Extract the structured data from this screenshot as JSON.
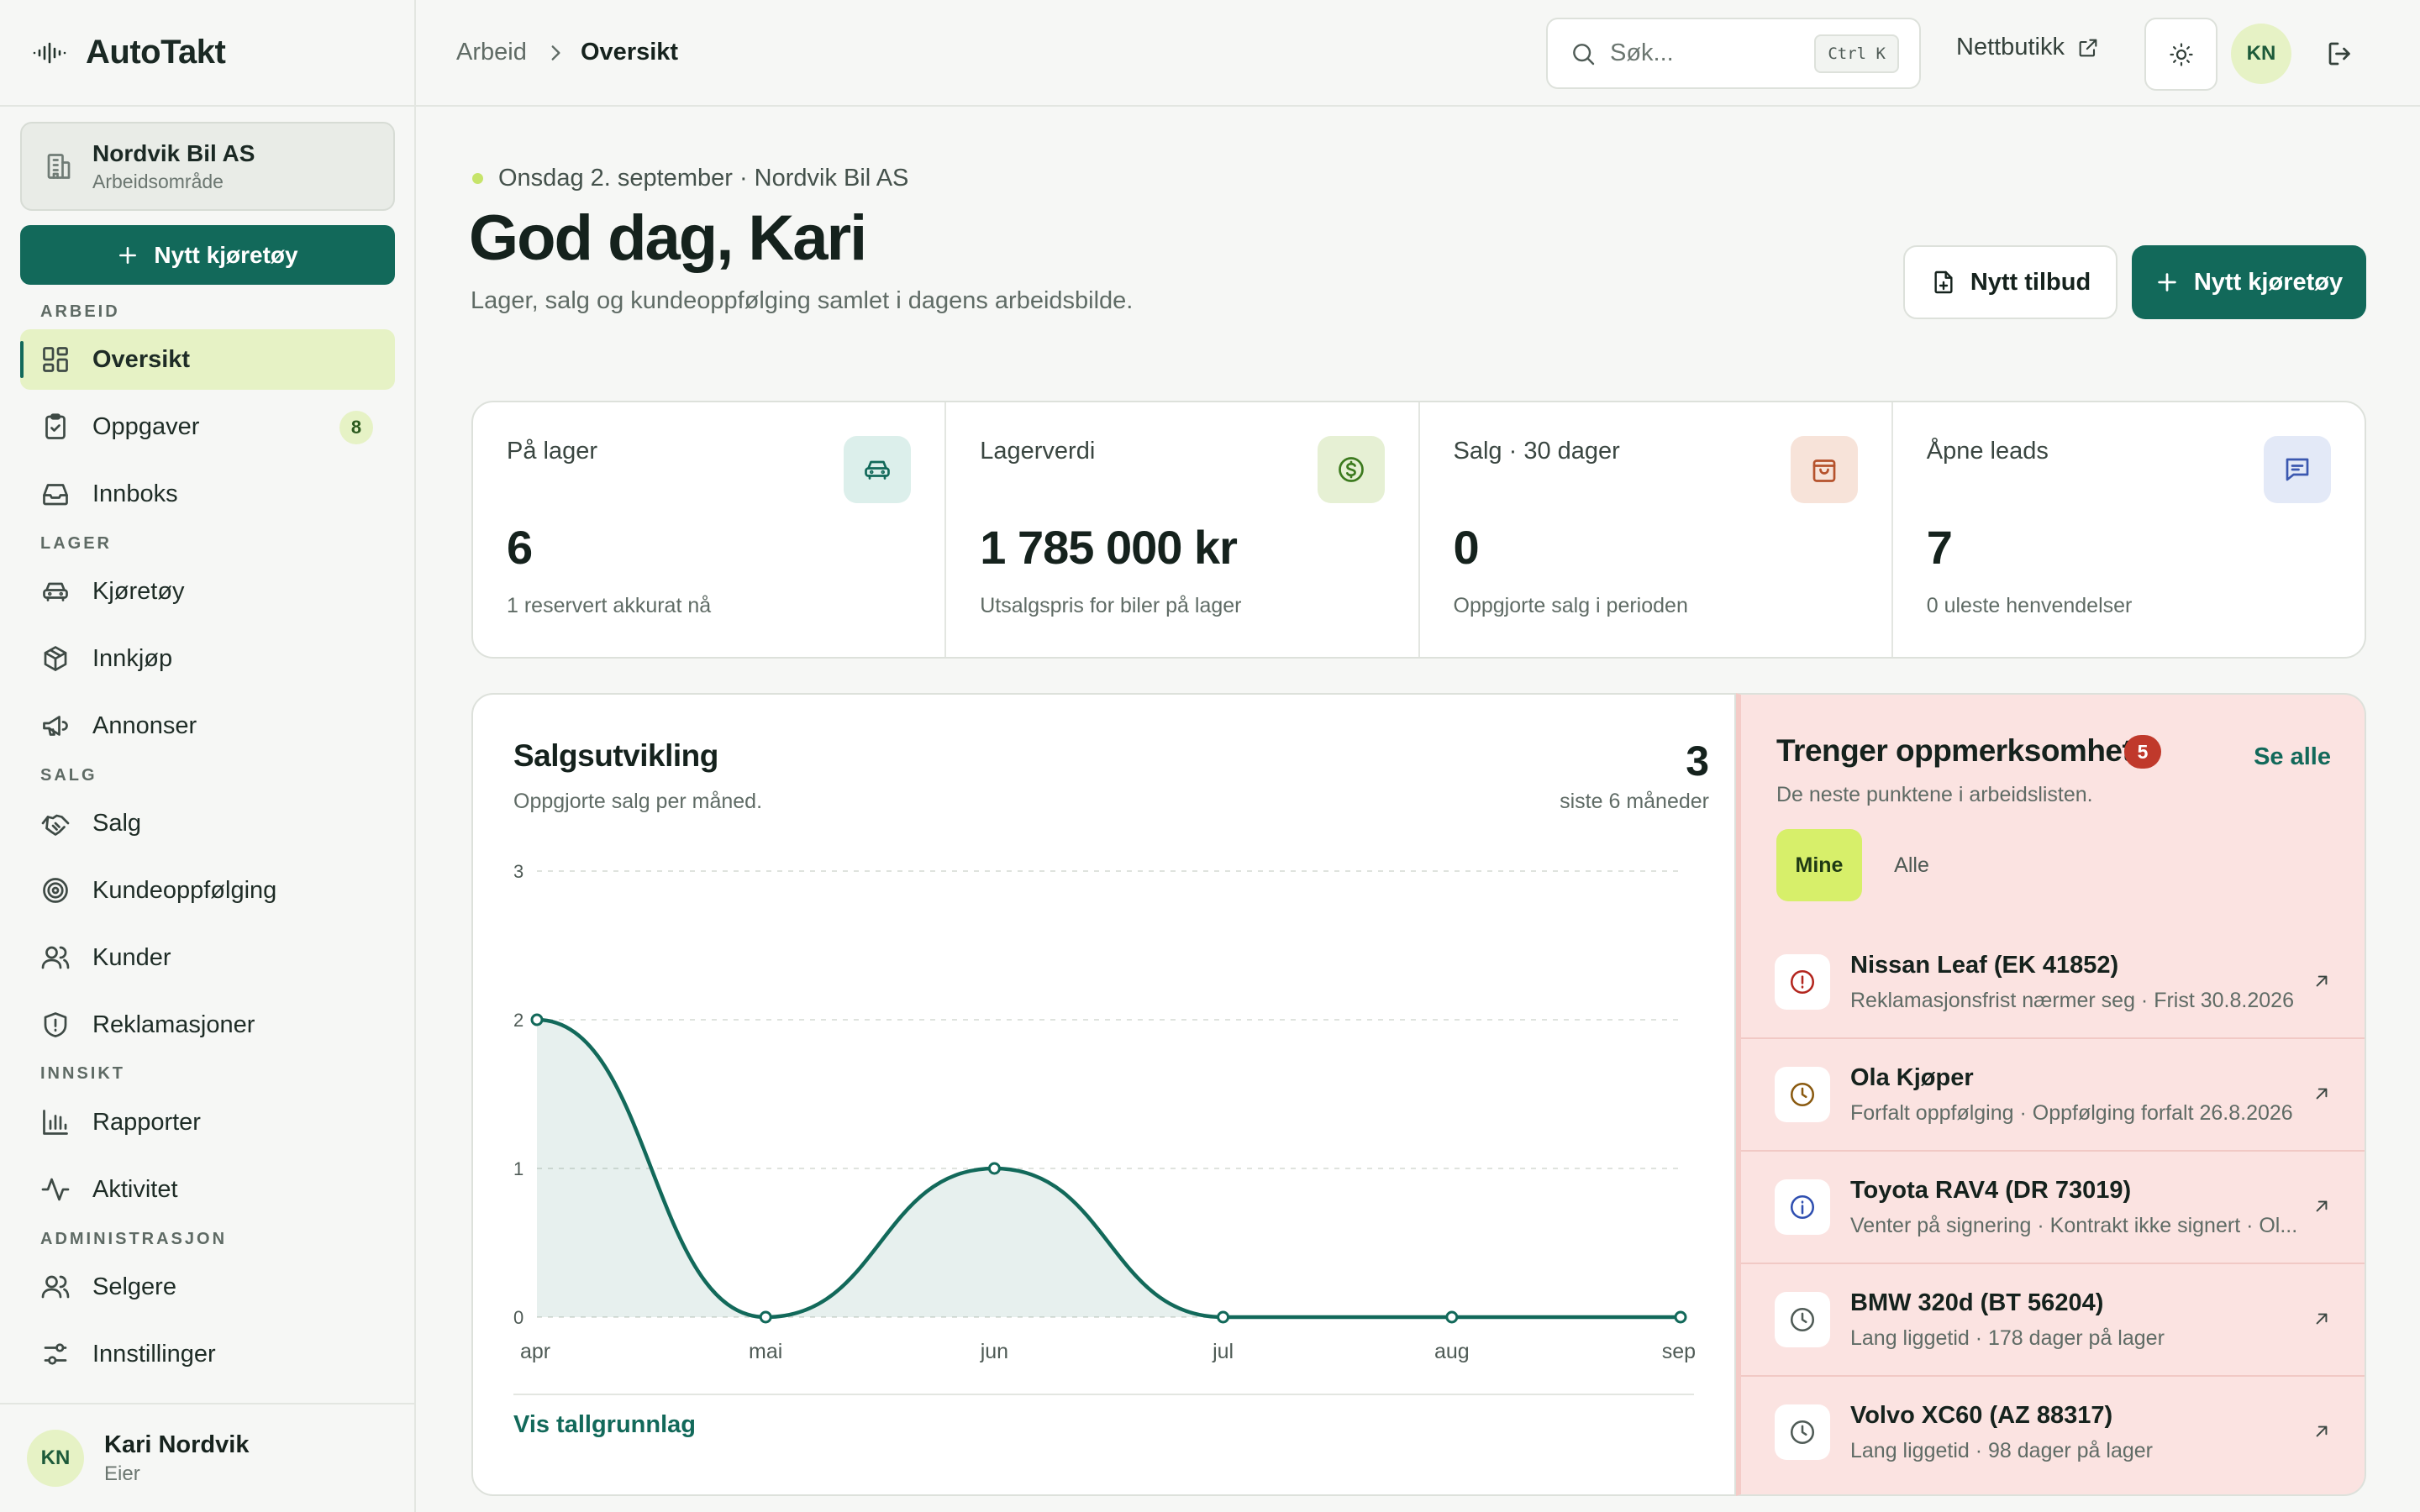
{
  "brand": {
    "name": "AutoTakt"
  },
  "workspace": {
    "name": "Nordvik Bil AS",
    "sub": "Arbeidsområde"
  },
  "sidebar": {
    "cta_label": "Nytt kjøretøy",
    "sections": {
      "arbeid": "ARBEID",
      "lager": "LAGER",
      "salg": "SALG",
      "innsikt": "INNSIKT",
      "admin": "ADMINISTRASJON"
    },
    "items": {
      "oversikt": "Oversikt",
      "oppgaver": "Oppgaver",
      "oppgaver_badge": "8",
      "innboks": "Innboks",
      "kjoretoy": "Kjøretøy",
      "innkjop": "Innkjøp",
      "annonser": "Annonser",
      "salg": "Salg",
      "kundeoppfolging": "Kundeoppfølging",
      "kunder": "Kunder",
      "reklamasjoner": "Reklamasjoner",
      "rapporter": "Rapporter",
      "aktivitet": "Aktivitet",
      "selgere": "Selgere",
      "innstillinger": "Innstillinger"
    },
    "user": {
      "initials": "KN",
      "name": "Kari Nordvik",
      "role": "Eier"
    }
  },
  "topbar": {
    "breadcrumb": [
      "Arbeid",
      "Oversikt"
    ],
    "search_placeholder": "Søk...",
    "search_value": "",
    "shortcut": "Ctrl K",
    "shop_link": "Nettbutikk",
    "avatar_initials": "KN"
  },
  "header": {
    "date_line": "Onsdag 2. september · Nordvik Bil AS",
    "greeting": "God dag, Kari",
    "subtitle": "Lager, salg og kundeoppfølging samlet i dagens arbeidsbilde.",
    "btn_offer": "Nytt tilbud",
    "btn_vehicle": "Nytt kjøretøy"
  },
  "stats": [
    {
      "label": "På lager",
      "value": "6",
      "note": "1 reservert akkurat nå",
      "icon": "car-icon",
      "icon_bg": "#dcefeb",
      "icon_color": "#12695a"
    },
    {
      "label": "Lagerverdi",
      "value": "1 785 000 kr",
      "note": "Utsalgspris for biler på lager",
      "icon": "dollar-icon",
      "icon_bg": "#e6f0d4",
      "icon_color": "#3c7a1e"
    },
    {
      "label": "Salg · 30 dager",
      "value": "0",
      "note": "Oppgjorte salg i perioden",
      "icon": "bag-icon",
      "icon_bg": "#f7e3d9",
      "icon_color": "#b5522c"
    },
    {
      "label": "Åpne leads",
      "value": "7",
      "note": "0 uleste henvendelser",
      "icon": "message-icon",
      "icon_bg": "#e3e9f7",
      "icon_color": "#3b58b0"
    }
  ],
  "chart": {
    "title": "Salgsutvikling",
    "subtitle": "Oppgjorte salg per måned.",
    "total": "3",
    "total_label": "siste 6 måneder",
    "link": "Vis tallgrunnlag"
  },
  "chart_data": {
    "type": "area",
    "categories": [
      "apr",
      "mai",
      "jun",
      "jul",
      "aug",
      "sep"
    ],
    "values": [
      2,
      0,
      1,
      0,
      0,
      0
    ],
    "ylim": [
      0,
      3
    ],
    "yticks": [
      0,
      1,
      2,
      3
    ],
    "grid": true,
    "color": "#12695a"
  },
  "attention": {
    "title": "Trenger oppmerksomhet",
    "count": "5",
    "see_all": "Se alle",
    "subtitle": "De neste punktene i arbeidslisten.",
    "tab_mine": "Mine",
    "tab_all": "Alle",
    "items": [
      {
        "title": "Nissan Leaf (EK 41852)",
        "sub": "Reklamasjonsfrist nærmer seg · Frist 30.8.2026",
        "icon": "alert-circle-icon",
        "color": "#b3261e"
      },
      {
        "title": "Ola Kjøper",
        "sub": "Forfalt oppfølging · Oppfølging forfalt 26.8.2026",
        "icon": "clock-icon",
        "color": "#8a5a10"
      },
      {
        "title": "Toyota RAV4 (DR 73019)",
        "sub": "Venter på signering · Kontrakt ikke signert · Ol...",
        "icon": "info-icon",
        "color": "#2f4fb0"
      },
      {
        "title": "BMW 320d (BT 56204)",
        "sub": "Lang liggetid · 178 dager på lager",
        "icon": "clock-icon",
        "color": "#4f5b56"
      },
      {
        "title": "Volvo XC60 (AZ 88317)",
        "sub": "Lang liggetid · 98 dager på lager",
        "icon": "clock-icon",
        "color": "#4f5b56"
      }
    ]
  }
}
